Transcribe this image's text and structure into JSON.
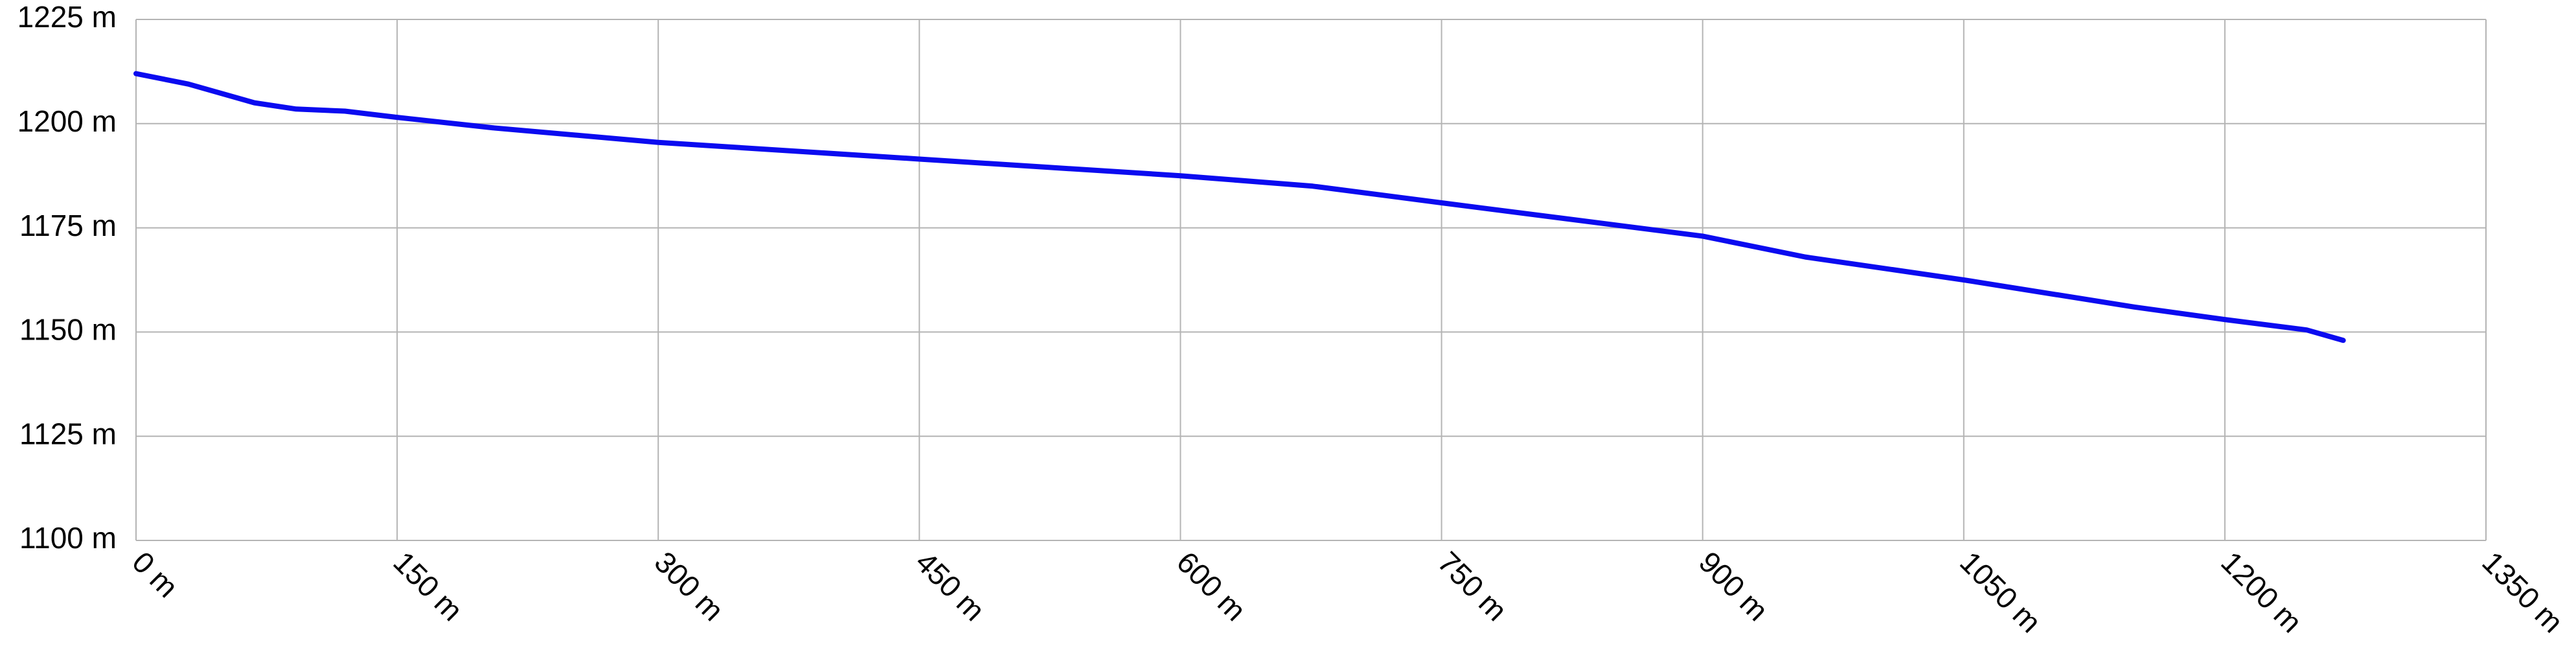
{
  "chart_data": {
    "type": "line",
    "x": [
      0,
      30,
      68,
      92,
      120,
      150,
      205,
      300,
      450,
      600,
      676,
      750,
      900,
      959,
      1050,
      1148,
      1200,
      1247,
      1268
    ],
    "values": [
      1212,
      1209.5,
      1205,
      1203.5,
      1203,
      1201.5,
      1199,
      1195.5,
      1191.5,
      1187.5,
      1185,
      1181,
      1173,
      1168,
      1162.5,
      1156,
      1153,
      1150.5,
      1148
    ],
    "color": "#0b0bf0",
    "xlim": [
      0,
      1350
    ],
    "xticks": [
      {
        "value": 0,
        "label": "0 m"
      },
      {
        "value": 150,
        "label": "150 m"
      },
      {
        "value": 300,
        "label": "300 m"
      },
      {
        "value": 450,
        "label": "450 m"
      },
      {
        "value": 600,
        "label": "600 m"
      },
      {
        "value": 750,
        "label": "750 m"
      },
      {
        "value": 900,
        "label": "900 m"
      },
      {
        "value": 1050,
        "label": "1050 m"
      },
      {
        "value": 1200,
        "label": "1200 m"
      },
      {
        "value": 1350,
        "label": "1350 m"
      }
    ],
    "ylim": [
      1100,
      1225
    ],
    "yticks": [
      {
        "value": 1100,
        "label": "1100 m"
      },
      {
        "value": 1125,
        "label": "1125 m"
      },
      {
        "value": 1150,
        "label": "1150 m"
      },
      {
        "value": 1175,
        "label": "1175 m"
      },
      {
        "value": 1200,
        "label": "1200 m"
      },
      {
        "value": 1225,
        "label": "1225 m"
      }
    ],
    "grid": true
  }
}
